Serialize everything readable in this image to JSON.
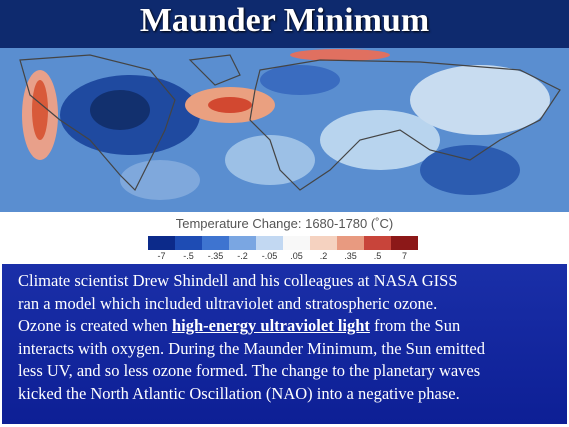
{
  "title": "Maunder Minimum",
  "legend": {
    "label": "Temperature Change: 1680-1780 (˚C)",
    "ticks": [
      "-7",
      "-.5",
      "-.35",
      "-.2",
      "-.05",
      ".05",
      ".2",
      ".35",
      ".5",
      "7"
    ]
  },
  "paragraph": [
    [
      "Climate scientist Drew Shindell and his colleagues at NASA GISS"
    ],
    [
      "ran a model which included ultraviolet and stratospheric ozone."
    ],
    [
      "Ozone is created when ",
      "high-energy ultraviolet light",
      " from the Sun"
    ],
    [
      "interacts with oxygen. During the Maunder Minimum, the Sun emitted"
    ],
    [
      "less UV, and so less ozone formed. The change to the planetary waves"
    ],
    [
      "kicked the North Atlantic Oscillation (NAO) into a negative phase."
    ]
  ]
}
